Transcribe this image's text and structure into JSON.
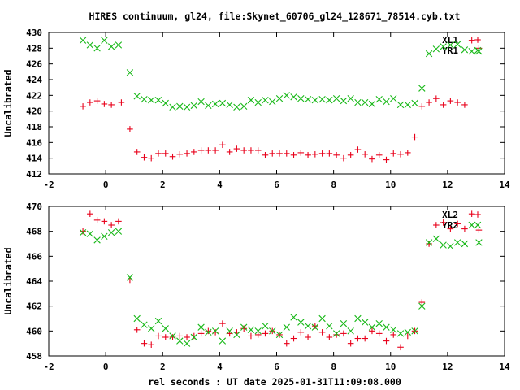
{
  "title": "HIRES continuum, gl24, file:Skynet_60706_gl24_128671_78514.cyb.txt",
  "colors": {
    "red": "#e8001a",
    "green": "#18b818",
    "frame": "#000000"
  },
  "chart_data": [
    {
      "type": "scatter",
      "ylabel": "Uncalibrated",
      "xlim": [
        -2,
        14
      ],
      "ylim": [
        412,
        430
      ],
      "xticks": [
        "-2",
        "0",
        "2",
        "4",
        "6",
        "8",
        "10",
        "12",
        "14"
      ],
      "yticks": [
        "412",
        "414",
        "416",
        "418",
        "420",
        "422",
        "424",
        "426",
        "428",
        "430"
      ],
      "legend_position": "top-right",
      "series": [
        {
          "name": "XL1",
          "marker": "plus",
          "color": "#e8001a",
          "x": [
            -0.8,
            -0.55,
            -0.3,
            -0.05,
            0.2,
            0.55,
            0.85,
            1.1,
            1.35,
            1.6,
            1.85,
            2.1,
            2.35,
            2.6,
            2.85,
            3.1,
            3.35,
            3.6,
            3.85,
            4.1,
            4.35,
            4.6,
            4.85,
            5.1,
            5.35,
            5.6,
            5.85,
            6.1,
            6.35,
            6.6,
            6.85,
            7.1,
            7.35,
            7.6,
            7.85,
            8.1,
            8.35,
            8.6,
            8.85,
            9.1,
            9.35,
            9.6,
            9.85,
            10.1,
            10.35,
            10.6,
            10.85,
            11.1,
            11.35,
            11.6,
            11.85,
            12.1,
            12.35,
            12.6,
            12.85,
            13.1
          ],
          "y": [
            420.6,
            421.1,
            421.3,
            420.9,
            420.8,
            421.1,
            417.7,
            414.8,
            414.1,
            414.0,
            414.6,
            414.6,
            414.2,
            414.5,
            414.6,
            414.8,
            415.0,
            415.0,
            415.0,
            415.7,
            414.8,
            415.2,
            415.0,
            415.0,
            415.0,
            414.4,
            414.6,
            414.6,
            414.6,
            414.4,
            414.7,
            414.4,
            414.5,
            414.6,
            414.6,
            414.4,
            414.0,
            414.4,
            415.1,
            414.5,
            413.9,
            414.4,
            413.8,
            414.6,
            414.5,
            414.7,
            416.7,
            420.6,
            421.1,
            421.6,
            420.8,
            421.3,
            421.1,
            420.8,
            429.0,
            428.0
          ],
          "x_extra_note": ""
        },
        {
          "name": "YR1",
          "marker": "cross",
          "color": "#18b818",
          "x": [
            -0.8,
            -0.55,
            -0.3,
            -0.05,
            0.2,
            0.45,
            0.85,
            1.1,
            1.35,
            1.6,
            1.85,
            2.1,
            2.35,
            2.6,
            2.85,
            3.1,
            3.35,
            3.6,
            3.85,
            4.1,
            4.35,
            4.6,
            4.85,
            5.1,
            5.35,
            5.6,
            5.85,
            6.1,
            6.35,
            6.6,
            6.85,
            7.1,
            7.35,
            7.6,
            7.85,
            8.1,
            8.35,
            8.6,
            8.85,
            9.1,
            9.35,
            9.6,
            9.85,
            10.1,
            10.35,
            10.6,
            10.85,
            11.1,
            11.35,
            11.6,
            11.85,
            12.1,
            12.35,
            12.6,
            12.85,
            13.1
          ],
          "y": [
            429.0,
            428.4,
            428.0,
            429.0,
            428.2,
            428.4,
            424.9,
            421.9,
            421.5,
            421.4,
            421.4,
            421.0,
            420.5,
            420.6,
            420.5,
            420.7,
            421.2,
            420.7,
            420.9,
            421.0,
            420.8,
            420.5,
            420.6,
            421.4,
            421.1,
            421.4,
            421.2,
            421.6,
            422.0,
            421.8,
            421.6,
            421.5,
            421.4,
            421.5,
            421.4,
            421.6,
            421.3,
            421.6,
            421.1,
            421.1,
            420.9,
            421.5,
            421.2,
            421.6,
            420.8,
            420.8,
            421.0,
            422.9,
            427.3,
            427.9,
            428.2,
            428.4,
            428.5,
            427.8,
            427.6,
            427.6
          ]
        }
      ]
    },
    {
      "type": "scatter",
      "ylabel": "Uncalibrated",
      "xlabel": "rel seconds : UT date 2025-01-31T11:09:08.000",
      "xlim": [
        -2,
        14
      ],
      "ylim": [
        458,
        470
      ],
      "xticks": [
        "-2",
        "0",
        "2",
        "4",
        "6",
        "8",
        "10",
        "12",
        "14"
      ],
      "yticks": [
        "458",
        "460",
        "462",
        "464",
        "466",
        "468",
        "470"
      ],
      "legend_position": "top-right",
      "series": [
        {
          "name": "XL2",
          "marker": "plus",
          "color": "#e8001a",
          "x": [
            -0.8,
            -0.55,
            -0.3,
            -0.05,
            0.2,
            0.45,
            0.85,
            1.1,
            1.35,
            1.6,
            1.85,
            2.1,
            2.35,
            2.6,
            2.85,
            3.1,
            3.35,
            3.6,
            3.85,
            4.1,
            4.35,
            4.6,
            4.85,
            5.1,
            5.35,
            5.6,
            5.85,
            6.1,
            6.35,
            6.6,
            6.85,
            7.1,
            7.35,
            7.6,
            7.85,
            8.1,
            8.35,
            8.6,
            8.85,
            9.1,
            9.35,
            9.6,
            9.85,
            10.1,
            10.35,
            10.6,
            10.85,
            11.1,
            11.35,
            11.6,
            11.85,
            12.1,
            12.35,
            12.6,
            12.85,
            13.1
          ],
          "y": [
            468.0,
            469.4,
            468.9,
            468.8,
            468.5,
            468.8,
            464.1,
            460.1,
            459.0,
            458.9,
            459.6,
            459.5,
            459.5,
            459.6,
            459.5,
            459.6,
            459.8,
            460.0,
            459.9,
            460.6,
            459.8,
            459.9,
            460.2,
            459.6,
            459.7,
            459.8,
            460.0,
            459.7,
            459.0,
            459.4,
            459.9,
            459.5,
            460.4,
            459.9,
            459.5,
            459.7,
            459.8,
            459.0,
            459.4,
            459.4,
            460.0,
            459.8,
            459.2,
            459.7,
            458.7,
            459.6,
            460.0,
            462.3,
            467.0,
            468.5,
            468.7,
            468.2,
            468.6,
            468.2,
            469.4,
            468.1
          ]
        },
        {
          "name": "YR2",
          "marker": "cross",
          "color": "#18b818",
          "x": [
            -0.8,
            -0.55,
            -0.3,
            -0.05,
            0.2,
            0.45,
            0.85,
            1.1,
            1.35,
            1.6,
            1.85,
            2.1,
            2.35,
            2.6,
            2.85,
            3.1,
            3.35,
            3.6,
            3.85,
            4.1,
            4.35,
            4.6,
            4.85,
            5.1,
            5.35,
            5.6,
            5.85,
            6.1,
            6.35,
            6.6,
            6.85,
            7.1,
            7.35,
            7.6,
            7.85,
            8.1,
            8.35,
            8.6,
            8.85,
            9.1,
            9.35,
            9.6,
            9.85,
            10.1,
            10.35,
            10.6,
            10.85,
            11.1,
            11.35,
            11.6,
            11.85,
            12.1,
            12.35,
            12.6,
            12.85,
            13.1
          ],
          "y": [
            467.9,
            467.8,
            467.3,
            467.6,
            467.9,
            468.0,
            464.3,
            461.0,
            460.5,
            460.2,
            460.8,
            460.2,
            459.6,
            459.2,
            459.0,
            459.5,
            460.3,
            459.9,
            460.0,
            459.2,
            460.0,
            459.7,
            460.3,
            460.1,
            460.0,
            460.4,
            460.0,
            459.7,
            460.3,
            461.1,
            460.7,
            460.4,
            460.3,
            461.0,
            460.4,
            459.8,
            460.6,
            460.0,
            461.0,
            460.7,
            460.3,
            460.6,
            460.3,
            460.1,
            459.8,
            459.9,
            460.0,
            462.0,
            467.1,
            467.4,
            466.9,
            466.8,
            467.1,
            467.0,
            468.5,
            467.1
          ]
        }
      ]
    }
  ]
}
